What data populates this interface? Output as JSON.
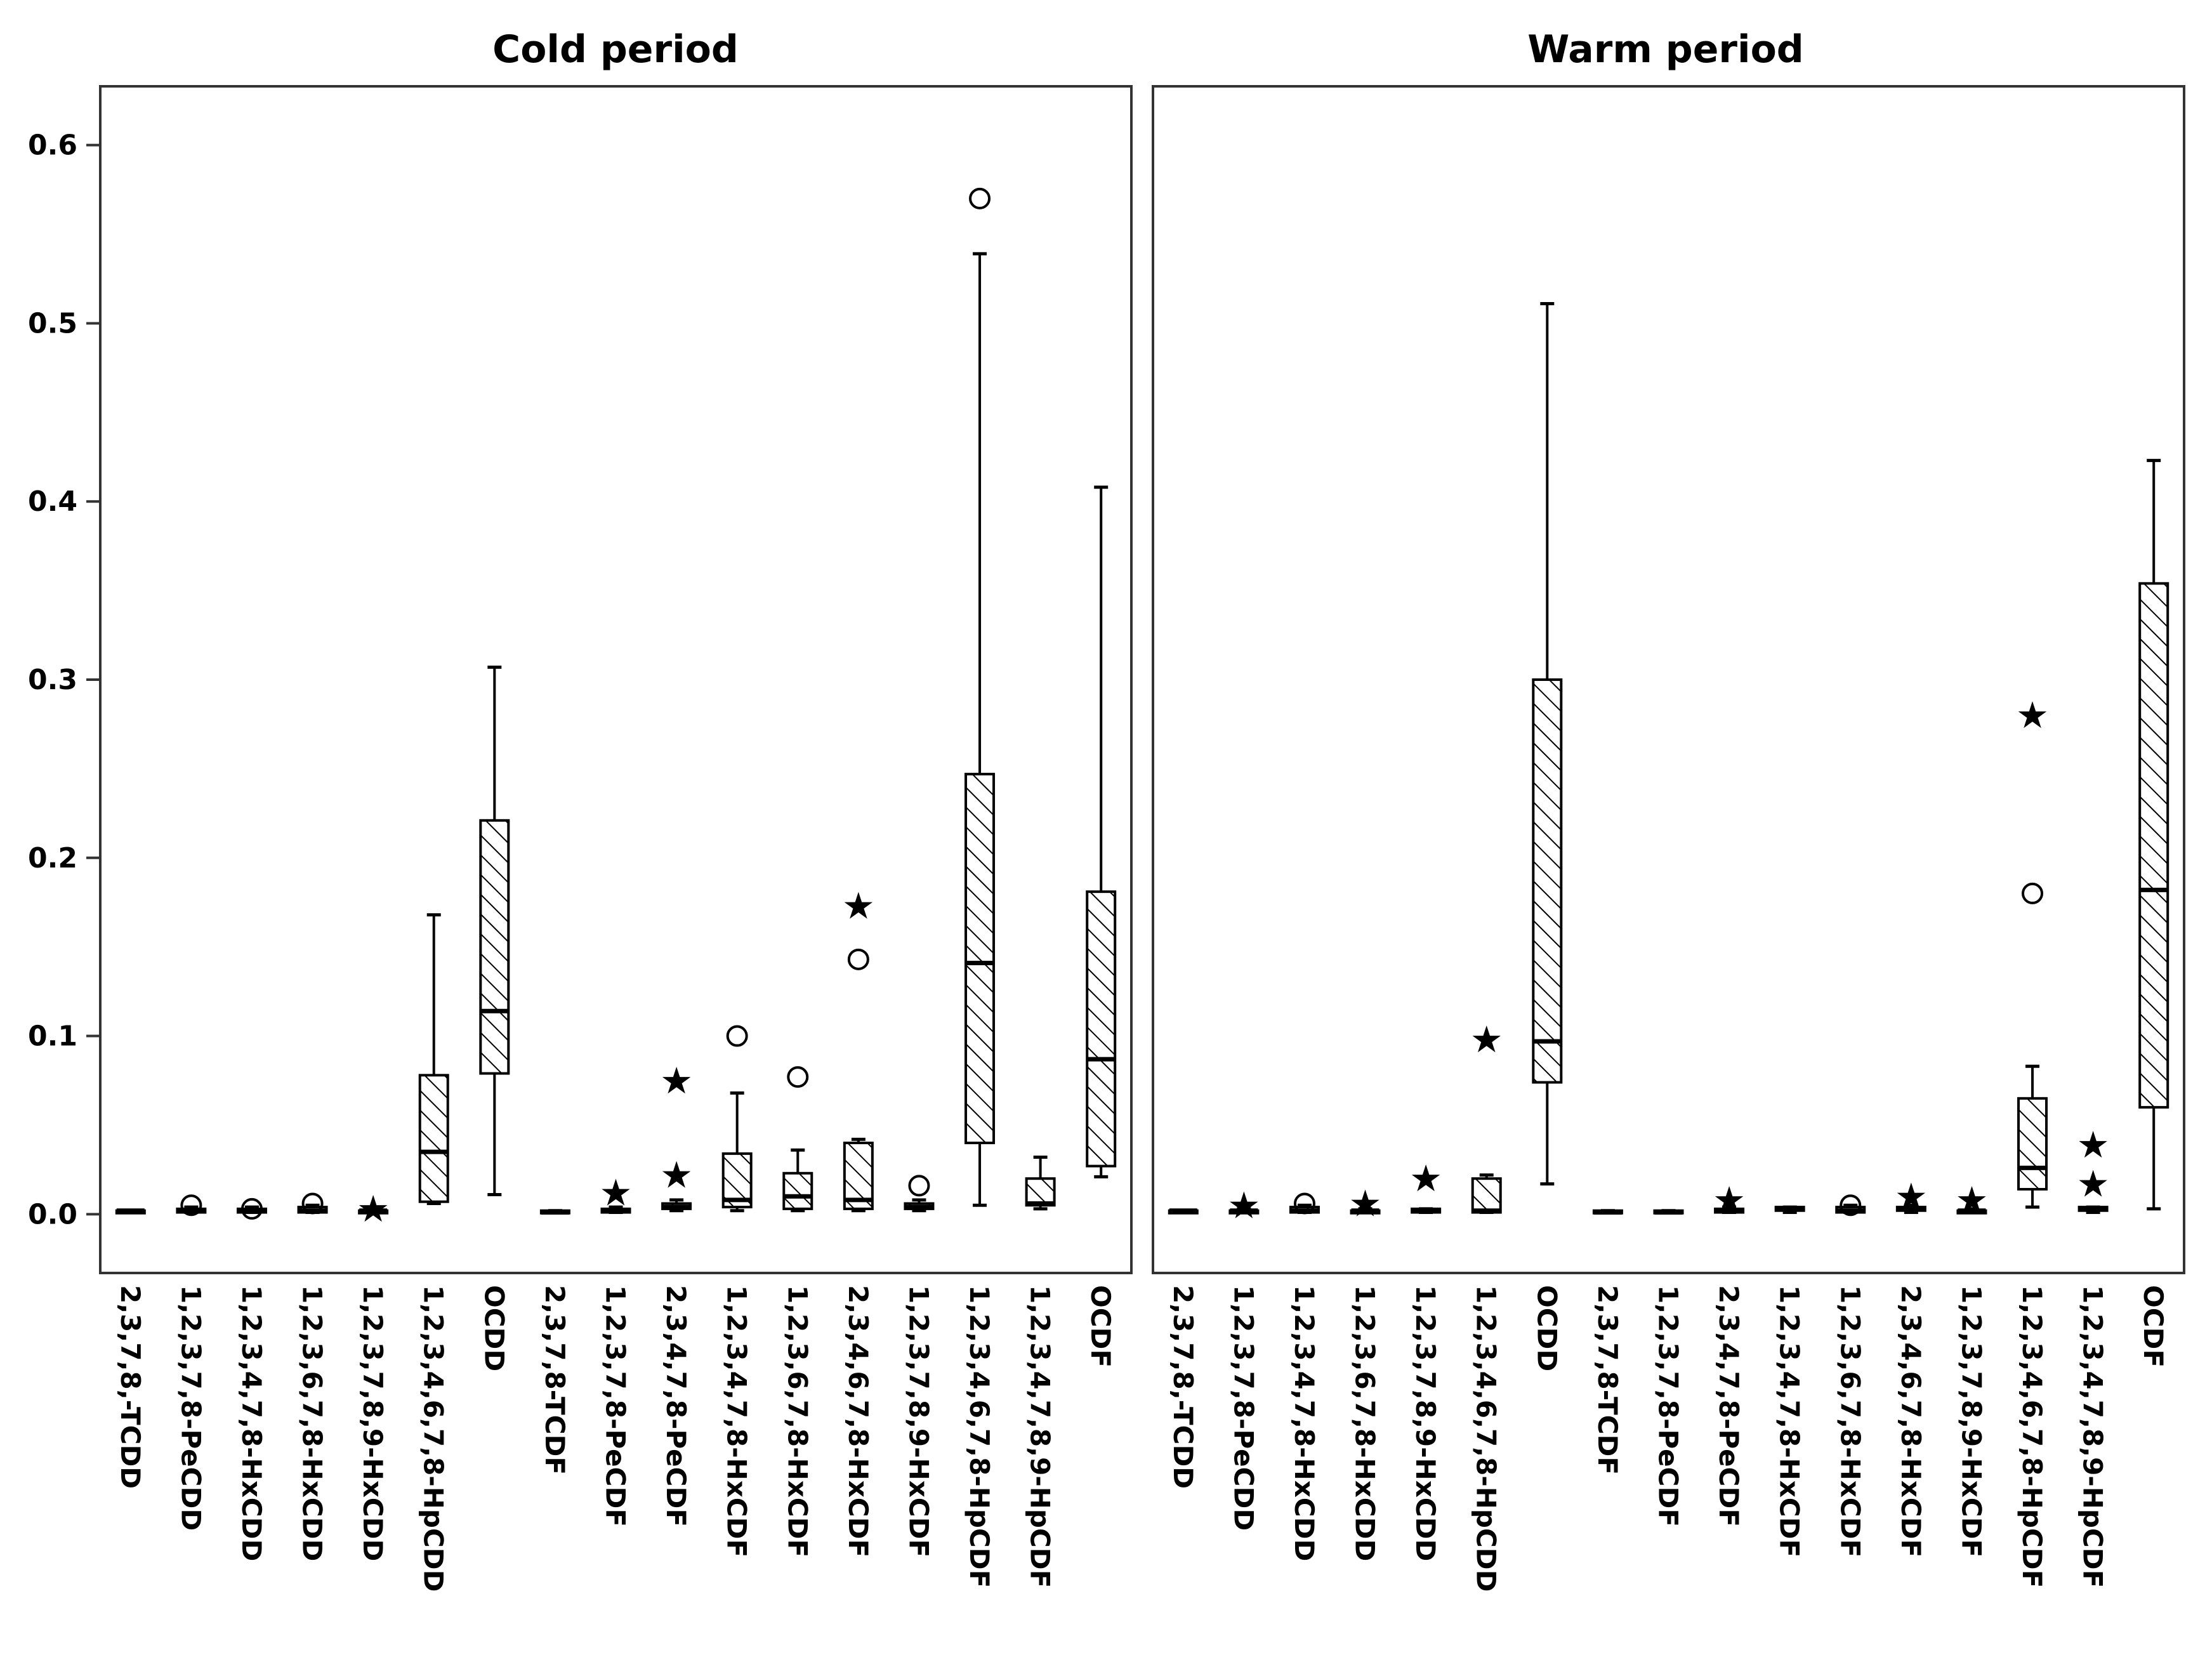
{
  "chart_data": [
    {
      "type": "box",
      "title": "Cold period",
      "xlabel": "",
      "ylabel": "",
      "ylim": [
        -0.033,
        0.633
      ],
      "yticks": [
        0.0,
        0.1,
        0.2,
        0.3,
        0.4,
        0.5,
        0.6
      ],
      "ytick_labels": [
        "0.0",
        "0.1",
        "0.2",
        "0.3",
        "0.4",
        "0.5",
        "0.6"
      ],
      "grid": false,
      "fill_pattern": "diagonal-hatch",
      "categories": [
        "2,3,7,8,-TCDD",
        "1,2,3,7,8-PeCDD",
        "1,2,3,4,7,8-HxCDD",
        "1,2,3,6,7,8-HxCDD",
        "1,2,3,7,8,9-HxCDD",
        "1,2,3,4,6,7,8-HpCDD",
        "OCDD",
        "2,3,7,8-TCDF",
        "1,2,3,7,8-PeCDF",
        "2,3,4,7,8-PeCDF",
        "1,2,3,4,7,8-HxCDF",
        "1,2,3,6,7,8-HxCDF",
        "2,3,4,6,7,8-HxCDF",
        "1,2,3,7,8,9-HxCDF",
        "1,2,3,4,6,7,8-HpCDF",
        "1,2,3,4,7,8,9-HpCDF",
        "OCDF"
      ],
      "boxes": [
        {
          "min": 0.001,
          "q1": 0.001,
          "median": 0.002,
          "q3": 0.002,
          "max": 0.002,
          "outliers": [],
          "extremes": []
        },
        {
          "min": 0.001,
          "q1": 0.001,
          "median": 0.002,
          "q3": 0.003,
          "max": 0.004,
          "outliers": [
            0.005
          ],
          "extremes": []
        },
        {
          "min": 0.001,
          "q1": 0.001,
          "median": 0.002,
          "q3": 0.003,
          "max": 0.004,
          "outliers": [
            0.003
          ],
          "extremes": []
        },
        {
          "min": 0.001,
          "q1": 0.001,
          "median": 0.002,
          "q3": 0.004,
          "max": 0.005,
          "outliers": [
            0.006
          ],
          "extremes": []
        },
        {
          "min": 0.001,
          "q1": 0.001,
          "median": 0.002,
          "q3": 0.002,
          "max": 0.003,
          "outliers": [],
          "extremes": [
            0.003
          ]
        },
        {
          "min": 0.006,
          "q1": 0.007,
          "median": 0.035,
          "q3": 0.078,
          "max": 0.168,
          "outliers": [],
          "extremes": []
        },
        {
          "min": 0.011,
          "q1": 0.079,
          "median": 0.114,
          "q3": 0.221,
          "max": 0.307,
          "outliers": [],
          "extremes": []
        },
        {
          "min": 0.001,
          "q1": 0.001,
          "median": 0.001,
          "q3": 0.002,
          "max": 0.002,
          "outliers": [],
          "extremes": []
        },
        {
          "min": 0.001,
          "q1": 0.001,
          "median": 0.002,
          "q3": 0.003,
          "max": 0.004,
          "outliers": [],
          "extremes": [
            0.012
          ]
        },
        {
          "min": 0.002,
          "q1": 0.003,
          "median": 0.004,
          "q3": 0.006,
          "max": 0.008,
          "outliers": [],
          "extremes": [
            0.022,
            0.075
          ]
        },
        {
          "min": 0.002,
          "q1": 0.004,
          "median": 0.008,
          "q3": 0.034,
          "max": 0.068,
          "outliers": [
            0.1
          ],
          "extremes": []
        },
        {
          "min": 0.002,
          "q1": 0.003,
          "median": 0.01,
          "q3": 0.023,
          "max": 0.036,
          "outliers": [
            0.077
          ],
          "extremes": []
        },
        {
          "min": 0.002,
          "q1": 0.003,
          "median": 0.008,
          "q3": 0.04,
          "max": 0.042,
          "outliers": [
            0.143
          ],
          "extremes": [
            0.173
          ]
        },
        {
          "min": 0.002,
          "q1": 0.003,
          "median": 0.004,
          "q3": 0.006,
          "max": 0.008,
          "outliers": [
            0.016
          ],
          "extremes": []
        },
        {
          "min": 0.005,
          "q1": 0.04,
          "median": 0.141,
          "q3": 0.247,
          "max": 0.539,
          "outliers": [
            0.57
          ],
          "extremes": []
        },
        {
          "min": 0.003,
          "q1": 0.005,
          "median": 0.006,
          "q3": 0.02,
          "max": 0.032,
          "outliers": [],
          "extremes": []
        },
        {
          "min": 0.021,
          "q1": 0.027,
          "median": 0.087,
          "q3": 0.181,
          "max": 0.408,
          "outliers": [],
          "extremes": []
        }
      ]
    },
    {
      "type": "box",
      "title": "Warm period",
      "xlabel": "",
      "ylabel": "",
      "ylim": [
        -0.033,
        0.633
      ],
      "grid": false,
      "fill_pattern": "diagonal-hatch",
      "categories": [
        "2,3,7,8,-TCDD",
        "1,2,3,7,8-PeCDD",
        "1,2,3,4,7,8-HxCDD",
        "1,2,3,6,7,8-HxCDD",
        "1,2,3,7,8,9-HxCDD",
        "1,2,3,4,6,7,8-HpCDD",
        "OCDD",
        "2,3,7,8-TCDF",
        "1,2,3,7,8-PeCDF",
        "2,3,4,7,8-PeCDF",
        "1,2,3,4,7,8-HxCDF",
        "1,2,3,6,7,8-HxCDF",
        "2,3,4,6,7,8-HxCDF",
        "1,2,3,7,8,9-HxCDF",
        "1,2,3,4,6,7,8-HpCDF",
        "1,2,3,4,7,8,9-HpCDF",
        "OCDF"
      ],
      "boxes": [
        {
          "min": 0.001,
          "q1": 0.001,
          "median": 0.002,
          "q3": 0.002,
          "max": 0.002,
          "outliers": [],
          "extremes": []
        },
        {
          "min": 0.001,
          "q1": 0.001,
          "median": 0.002,
          "q3": 0.002,
          "max": 0.003,
          "outliers": [],
          "extremes": [
            0.005
          ]
        },
        {
          "min": 0.001,
          "q1": 0.001,
          "median": 0.002,
          "q3": 0.004,
          "max": 0.005,
          "outliers": [
            0.006
          ],
          "extremes": []
        },
        {
          "min": 0.001,
          "q1": 0.001,
          "median": 0.002,
          "q3": 0.002,
          "max": 0.003,
          "outliers": [],
          "extremes": [
            0.006
          ]
        },
        {
          "min": 0.001,
          "q1": 0.001,
          "median": 0.002,
          "q3": 0.003,
          "max": 0.003,
          "outliers": [],
          "extremes": [
            0.02
          ]
        },
        {
          "min": 0.001,
          "q1": 0.001,
          "median": 0.002,
          "q3": 0.02,
          "max": 0.022,
          "outliers": [],
          "extremes": [
            0.098
          ]
        },
        {
          "min": 0.017,
          "q1": 0.074,
          "median": 0.097,
          "q3": 0.3,
          "max": 0.511,
          "outliers": [],
          "extremes": []
        },
        {
          "min": 0.001,
          "q1": 0.001,
          "median": 0.001,
          "q3": 0.002,
          "max": 0.002,
          "outliers": [],
          "extremes": []
        },
        {
          "min": 0.001,
          "q1": 0.001,
          "median": 0.001,
          "q3": 0.002,
          "max": 0.002,
          "outliers": [],
          "extremes": []
        },
        {
          "min": 0.001,
          "q1": 0.001,
          "median": 0.002,
          "q3": 0.003,
          "max": 0.004,
          "outliers": [],
          "extremes": [
            0.008
          ]
        },
        {
          "min": 0.001,
          "q1": 0.002,
          "median": 0.003,
          "q3": 0.004,
          "max": 0.004,
          "outliers": [],
          "extremes": []
        },
        {
          "min": 0.001,
          "q1": 0.001,
          "median": 0.002,
          "q3": 0.004,
          "max": 0.005,
          "outliers": [
            0.005
          ],
          "extremes": []
        },
        {
          "min": 0.001,
          "q1": 0.002,
          "median": 0.003,
          "q3": 0.004,
          "max": 0.005,
          "outliers": [],
          "extremes": [
            0.01
          ]
        },
        {
          "min": 0.001,
          "q1": 0.001,
          "median": 0.002,
          "q3": 0.002,
          "max": 0.003,
          "outliers": [],
          "extremes": [
            0.008
          ]
        },
        {
          "min": 0.004,
          "q1": 0.014,
          "median": 0.026,
          "q3": 0.065,
          "max": 0.083,
          "outliers": [
            0.18
          ],
          "extremes": [
            0.28
          ]
        },
        {
          "min": 0.001,
          "q1": 0.002,
          "median": 0.003,
          "q3": 0.004,
          "max": 0.004,
          "outliers": [],
          "extremes": [
            0.017,
            0.039
          ]
        },
        {
          "min": 0.003,
          "q1": 0.06,
          "median": 0.182,
          "q3": 0.354,
          "max": 0.423,
          "outliers": [],
          "extremes": []
        }
      ]
    }
  ]
}
